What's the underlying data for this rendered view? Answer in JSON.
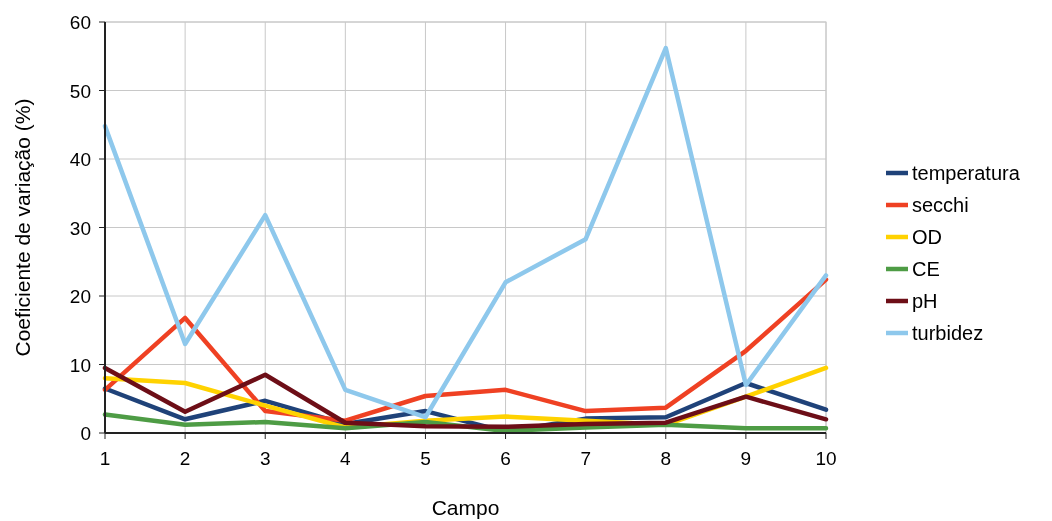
{
  "chart_data": {
    "type": "line",
    "xlabel": "Campo",
    "ylabel": "Coeficiente de variação (%)",
    "x": [
      1,
      2,
      3,
      4,
      5,
      6,
      7,
      8,
      9,
      10
    ],
    "xlim": [
      1,
      10
    ],
    "xticks": [
      1,
      2,
      3,
      4,
      5,
      6,
      7,
      8,
      9,
      10
    ],
    "ylim": [
      0,
      60
    ],
    "yticks": [
      0,
      10,
      20,
      30,
      40,
      50,
      60
    ],
    "grid": true,
    "legend": "right",
    "marker": "none",
    "line_style": "solid",
    "series": [
      {
        "name": "temperatura",
        "color": "#1f4279",
        "values": [
          6.5,
          2,
          4.7,
          1.3,
          3.2,
          0.2,
          2.1,
          2.3,
          7.3,
          3.4
        ]
      },
      {
        "name": "secchi",
        "color": "#ef4123",
        "values": [
          6.3,
          16.8,
          3.2,
          1.8,
          5.4,
          6.3,
          3.2,
          3.7,
          12,
          22.4
        ]
      },
      {
        "name": "OD",
        "color": "#ffd200",
        "values": [
          8,
          7.3,
          4,
          0.8,
          1.8,
          2.4,
          1.8,
          1.2,
          5.3,
          9.5
        ]
      },
      {
        "name": "CE",
        "color": "#4e9c45",
        "values": [
          2.7,
          1.2,
          1.6,
          0.7,
          1.6,
          0.3,
          0.8,
          1.2,
          0.7,
          0.7
        ]
      },
      {
        "name": "pH",
        "color": "#6d0e17",
        "values": [
          9.5,
          3.1,
          8.5,
          1.5,
          1,
          0.9,
          1.3,
          1.5,
          5.3,
          2
        ]
      },
      {
        "name": "turbidez",
        "color": "#8ec8ec",
        "values": [
          44.8,
          13,
          31.8,
          6.3,
          2.3,
          22,
          28.3,
          56.2,
          7,
          23
        ]
      }
    ]
  }
}
